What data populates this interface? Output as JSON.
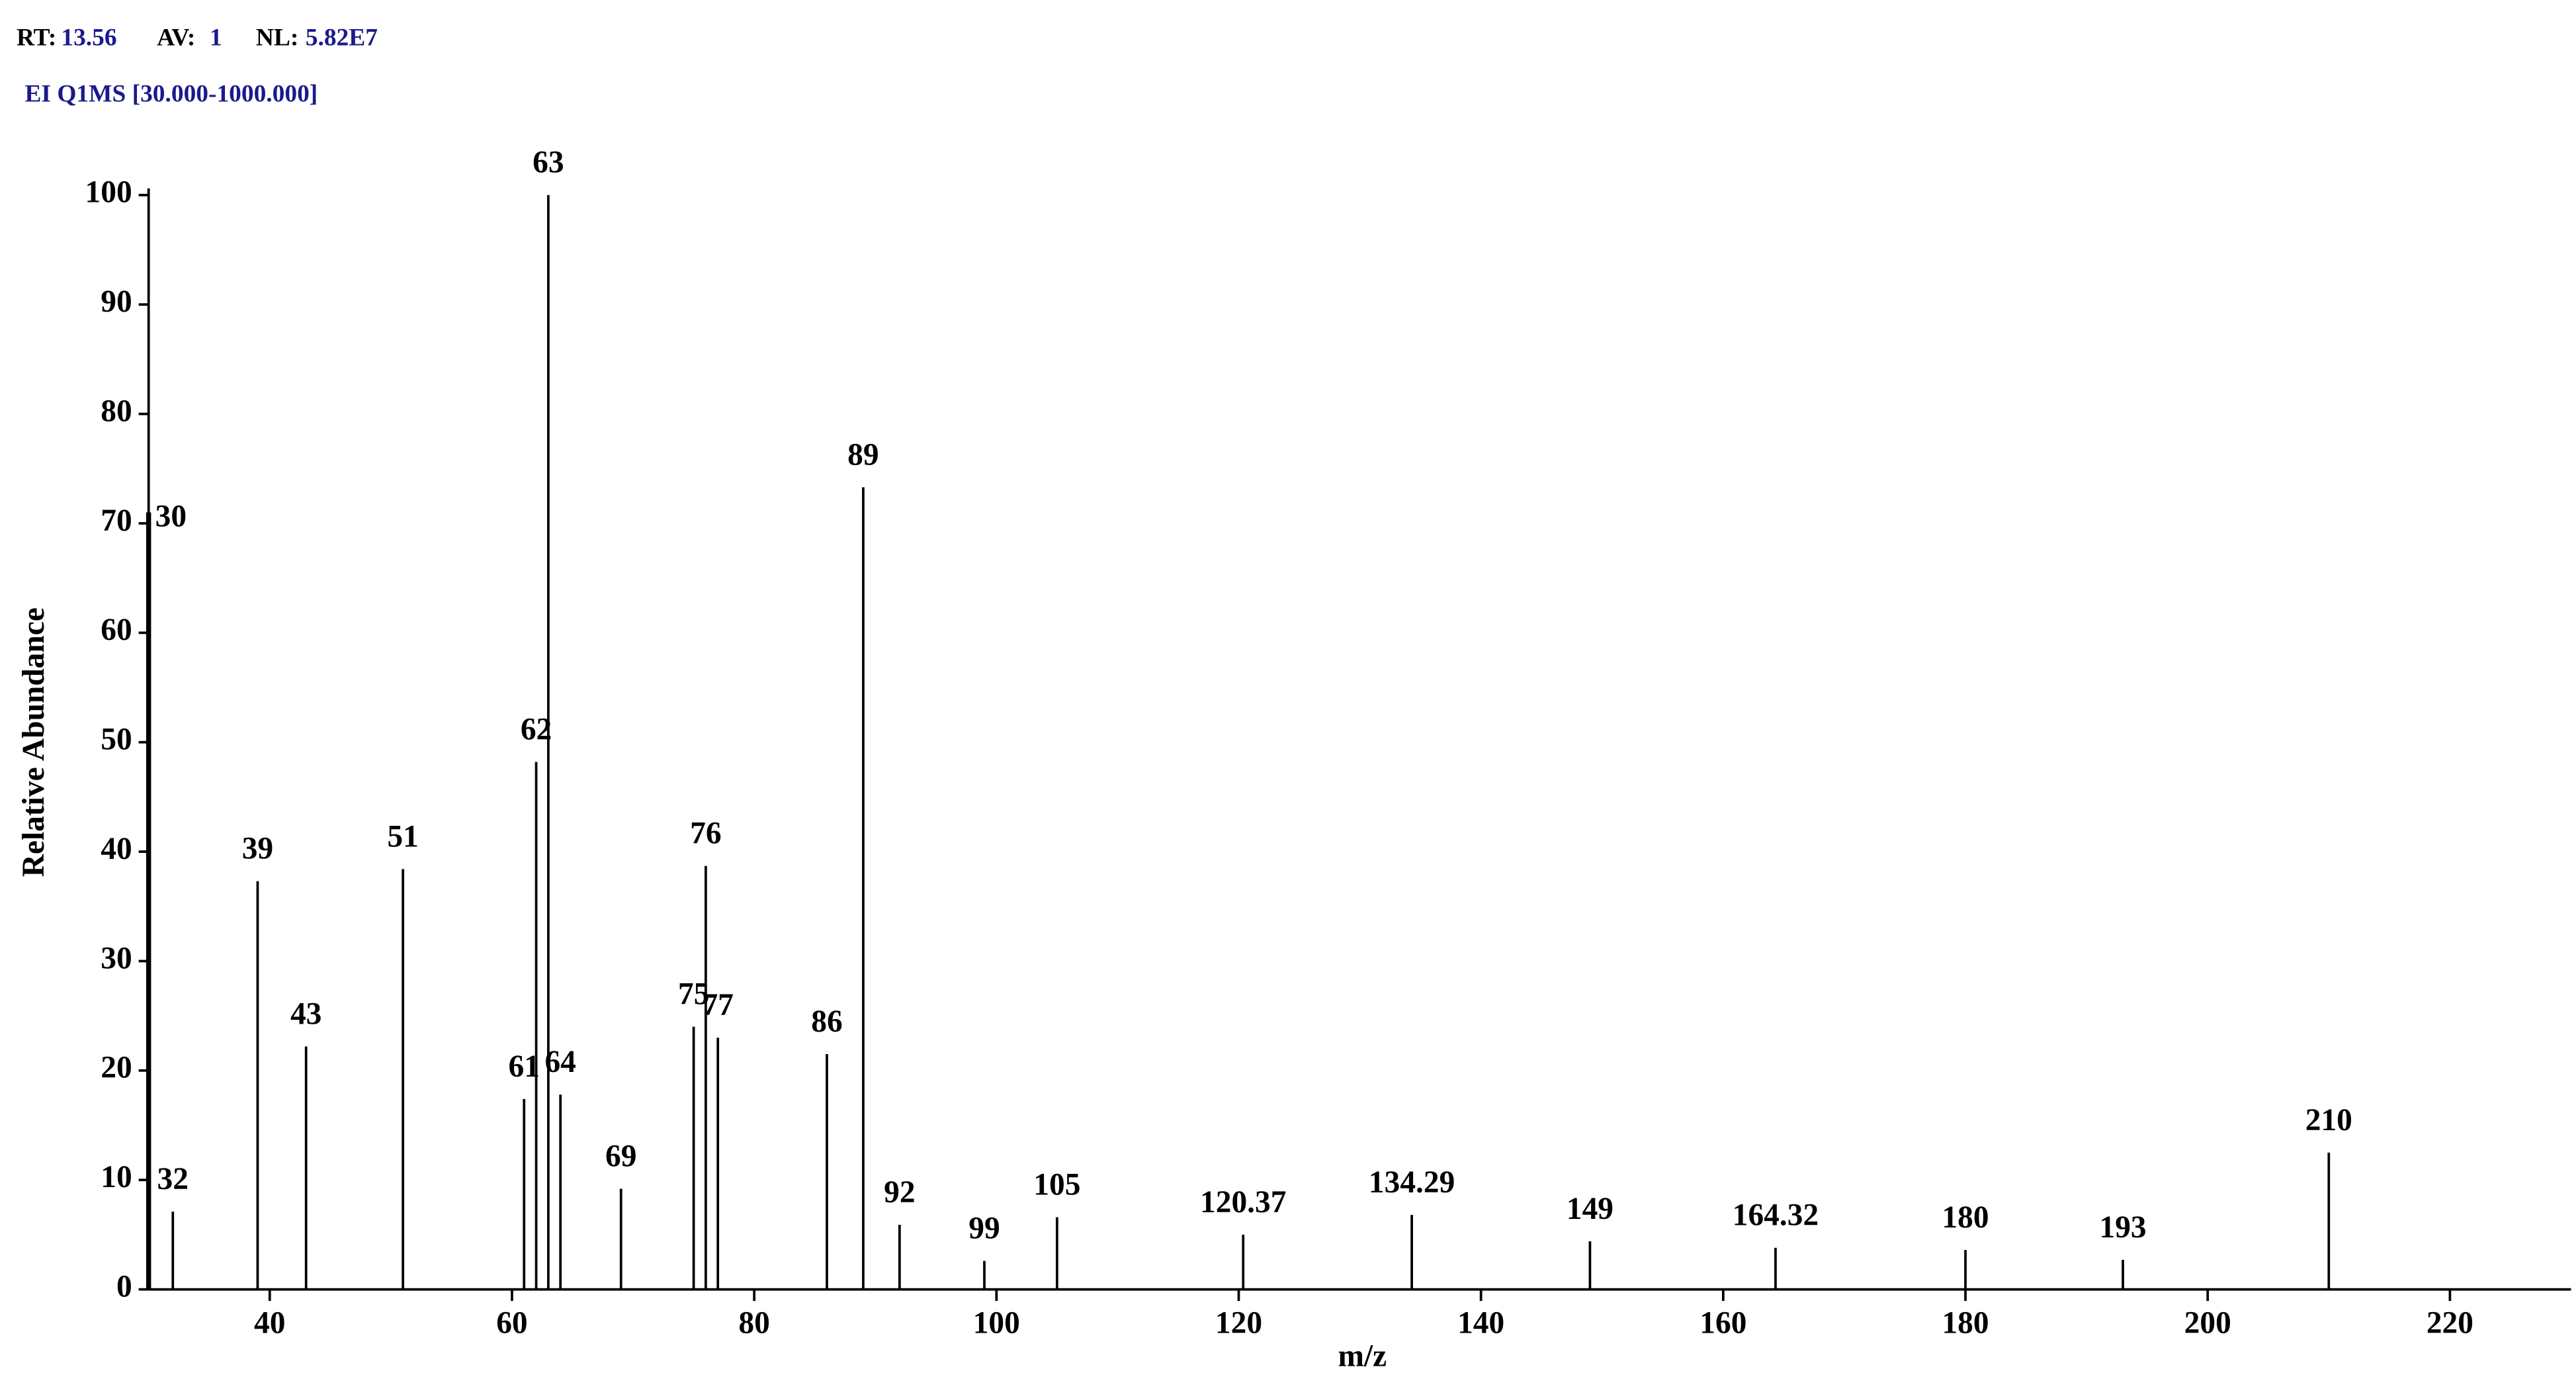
{
  "chart_data": {
    "type": "stem",
    "subtitle": "EI Q1MS [30.000-1000.000]",
    "annotations": [
      {
        "label": "RT:",
        "value": "13.56"
      },
      {
        "label": "AV:",
        "value": "1"
      },
      {
        "label": "NL:",
        "value": "5.82E7"
      }
    ],
    "x_label": "m/z",
    "y_label": "Relative Abundance",
    "x": [
      30,
      32,
      39,
      43,
      51,
      61,
      62,
      63,
      64,
      69,
      75,
      76,
      77,
      86,
      89,
      92,
      99,
      105,
      120.37,
      134.29,
      149,
      164.32,
      180,
      193,
      210
    ],
    "values": [
      71,
      7.1,
      37.3,
      22.2,
      38.4,
      17.4,
      48.2,
      100,
      17.8,
      9.2,
      24,
      38.7,
      23,
      21.5,
      73.3,
      5.9,
      2.6,
      6.6,
      5,
      6.8,
      4.4,
      3.8,
      3.6,
      2.7,
      12.5
    ],
    "color": "#000000",
    "xlim": [
      30,
      230
    ],
    "ylim": [
      0,
      100
    ],
    "xticks": [
      40,
      60,
      80,
      100,
      120,
      140,
      160,
      180,
      200,
      220
    ],
    "yticks": [
      0,
      10,
      20,
      30,
      40,
      50,
      60,
      70,
      80,
      90,
      100
    ]
  }
}
